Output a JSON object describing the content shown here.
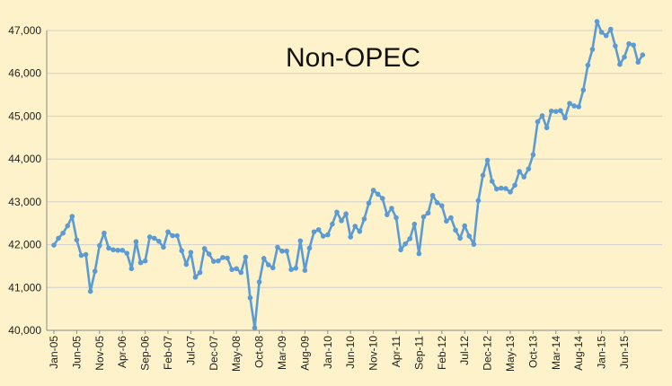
{
  "chart_data": {
    "type": "line",
    "title": "Non-OPEC",
    "xlabel": "",
    "ylabel": "",
    "ylim": [
      40000,
      47000
    ],
    "ytick_labels": [
      "40,000",
      "41,000",
      "42,000",
      "43,000",
      "44,000",
      "45,000",
      "46,000",
      "47,000"
    ],
    "ytick_values": [
      40000,
      41000,
      42000,
      43000,
      44000,
      45000,
      46000,
      47000
    ],
    "xtick_labels": [
      "Jan-05",
      "Jun-05",
      "Nov-05",
      "Apr-06",
      "Sep-06",
      "Feb-07",
      "Jul-07",
      "Dec-07",
      "May-08",
      "Oct-08",
      "Mar-09",
      "Aug-09",
      "Jan-10",
      "Jun-10",
      "Nov-10",
      "Apr-11",
      "Sep-11",
      "Feb-12",
      "Jul-12",
      "Dec-12",
      "May-13",
      "Oct-13",
      "Mar-14",
      "Aug-14",
      "Jan-15",
      "Jun-15"
    ],
    "x_start": "Jan-05",
    "grid": "horizontal",
    "line_color": "#5b9bd5",
    "marker_color": "#5b9bd5",
    "background_color": "#fdf2c9",
    "gridline_color": "#d0d0d0",
    "series": [
      {
        "values": [
          41990,
          42150,
          42270,
          42440,
          42660,
          42110,
          41750,
          41770,
          40910,
          41380,
          41980,
          42270,
          41920,
          41880,
          41870,
          41870,
          41800,
          41440,
          42070,
          41580,
          41620,
          42180,
          42150,
          42080,
          41940,
          42300,
          42210,
          42210,
          41860,
          41540,
          41820,
          41240,
          41350,
          41910,
          41780,
          41610,
          41620,
          41700,
          41690,
          41420,
          41440,
          41350,
          41710,
          40760,
          40060,
          41130,
          41680,
          41530,
          41460,
          41940,
          41850,
          41850,
          41420,
          41450,
          42090,
          41400,
          41920,
          42300,
          42350,
          42200,
          42230,
          42480,
          42760,
          42560,
          42720,
          42180,
          42430,
          42310,
          42600,
          42970,
          43270,
          43180,
          43080,
          42700,
          42850,
          42630,
          41880,
          42020,
          42140,
          42480,
          41790,
          42650,
          42740,
          43150,
          42980,
          42910,
          42550,
          42630,
          42340,
          42150,
          42440,
          42200,
          42010,
          43030,
          43620,
          43970,
          43480,
          43300,
          43320,
          43310,
          43230,
          43390,
          43710,
          43580,
          43770,
          44100,
          44870,
          45010,
          44730,
          45120,
          45110,
          45130,
          44960,
          45300,
          45240,
          45220,
          45610,
          46190,
          46560,
          47210,
          46960,
          46880,
          47030,
          46640,
          46210,
          46380,
          46690,
          46660,
          46260,
          46430
        ]
      }
    ]
  }
}
